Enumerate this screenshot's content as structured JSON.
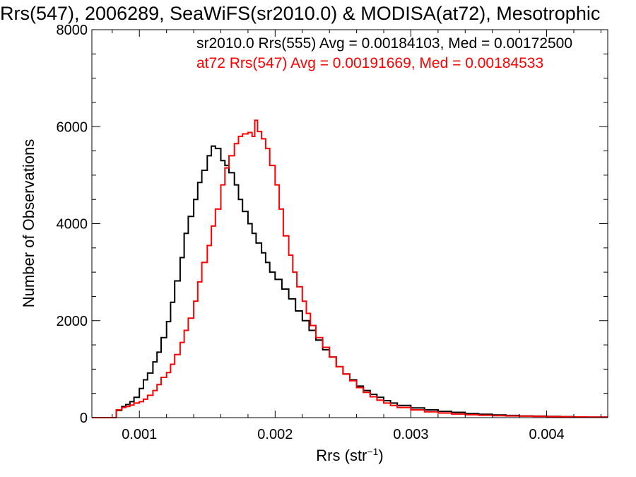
{
  "chart_data": {
    "type": "line",
    "title": "Rrs(547), 2006289, SeaWiFS(sr2010.0) & MODISA(at72), Mesotrophic",
    "xlabel": {
      "main": "Rrs (str",
      "sup": "−1",
      "close": ")"
    },
    "ylabel": "Number of Observations",
    "xlim": [
      0.00065,
      0.00445
    ],
    "ylim": [
      0,
      8000
    ],
    "x_ticks": [
      {
        "value": 0.001,
        "label": "0.001"
      },
      {
        "value": 0.002,
        "label": "0.002"
      },
      {
        "value": 0.003,
        "label": "0.003"
      },
      {
        "value": 0.004,
        "label": "0.004"
      }
    ],
    "y_ticks": [
      {
        "value": 0,
        "label": "0"
      },
      {
        "value": 2000,
        "label": "2000"
      },
      {
        "value": 4000,
        "label": "4000"
      },
      {
        "value": 6000,
        "label": "6000"
      },
      {
        "value": 8000,
        "label": "8000"
      }
    ],
    "grid": false,
    "legend_position": "top-right",
    "series": [
      {
        "name": "sr2010.0 Rrs(555) Avg = 0.00184103, Med = 0.00172500",
        "color": "#000000",
        "step": "post",
        "points": [
          [
            0.00065,
            0
          ],
          [
            0.0008,
            0
          ],
          [
            0.00083,
            150
          ],
          [
            0.00087,
            230
          ],
          [
            0.0009,
            270
          ],
          [
            0.00093,
            330
          ],
          [
            0.00096,
            420
          ],
          [
            0.001,
            600
          ],
          [
            0.00103,
            780
          ],
          [
            0.00106,
            920
          ],
          [
            0.0011,
            1150
          ],
          [
            0.00113,
            1350
          ],
          [
            0.00116,
            1650
          ],
          [
            0.0012,
            1980
          ],
          [
            0.00123,
            2380
          ],
          [
            0.00126,
            2820
          ],
          [
            0.0013,
            3300
          ],
          [
            0.00133,
            3800
          ],
          [
            0.00136,
            4150
          ],
          [
            0.0014,
            4500
          ],
          [
            0.00143,
            4850
          ],
          [
            0.00146,
            5100
          ],
          [
            0.0015,
            5400
          ],
          [
            0.00153,
            5600
          ],
          [
            0.00156,
            5550
          ],
          [
            0.0016,
            5300
          ],
          [
            0.00163,
            5200
          ],
          [
            0.00166,
            5050
          ],
          [
            0.0017,
            4800
          ],
          [
            0.00173,
            4500
          ],
          [
            0.00176,
            4250
          ],
          [
            0.0018,
            4000
          ],
          [
            0.00183,
            3800
          ],
          [
            0.00186,
            3600
          ],
          [
            0.0019,
            3400
          ],
          [
            0.00193,
            3200
          ],
          [
            0.00196,
            3000
          ],
          [
            0.002,
            2850
          ],
          [
            0.00205,
            2650
          ],
          [
            0.0021,
            2450
          ],
          [
            0.00215,
            2200
          ],
          [
            0.0022,
            2000
          ],
          [
            0.00225,
            1800
          ],
          [
            0.0023,
            1600
          ],
          [
            0.00235,
            1400
          ],
          [
            0.0024,
            1250
          ],
          [
            0.00245,
            1050
          ],
          [
            0.0025,
            900
          ],
          [
            0.00255,
            780
          ],
          [
            0.0026,
            650
          ],
          [
            0.00265,
            560
          ],
          [
            0.0027,
            480
          ],
          [
            0.00275,
            420
          ],
          [
            0.0028,
            350
          ],
          [
            0.00285,
            300
          ],
          [
            0.0029,
            250
          ],
          [
            0.003,
            200
          ],
          [
            0.0031,
            160
          ],
          [
            0.0032,
            130
          ],
          [
            0.0033,
            110
          ],
          [
            0.0034,
            85
          ],
          [
            0.0035,
            70
          ],
          [
            0.0036,
            55
          ],
          [
            0.0037,
            45
          ],
          [
            0.0038,
            35
          ],
          [
            0.0039,
            30
          ],
          [
            0.004,
            25
          ],
          [
            0.0041,
            20
          ],
          [
            0.0042,
            15
          ],
          [
            0.0043,
            12
          ],
          [
            0.0044,
            10
          ],
          [
            0.00445,
            10
          ]
        ]
      },
      {
        "name": "at72 Rrs(547) Avg = 0.00191669, Med = 0.00184533",
        "color": "#ff0000",
        "step": "post",
        "points": [
          [
            0.00065,
            0
          ],
          [
            0.0008,
            0
          ],
          [
            0.00083,
            160
          ],
          [
            0.00087,
            210
          ],
          [
            0.0009,
            230
          ],
          [
            0.00093,
            260
          ],
          [
            0.00096,
            300
          ],
          [
            0.001,
            330
          ],
          [
            0.00103,
            380
          ],
          [
            0.00106,
            460
          ],
          [
            0.0011,
            560
          ],
          [
            0.00113,
            680
          ],
          [
            0.00116,
            830
          ],
          [
            0.0012,
            930
          ],
          [
            0.00123,
            1100
          ],
          [
            0.00126,
            1300
          ],
          [
            0.0013,
            1550
          ],
          [
            0.00133,
            1800
          ],
          [
            0.00136,
            2050
          ],
          [
            0.0014,
            2400
          ],
          [
            0.00143,
            2800
          ],
          [
            0.00146,
            3200
          ],
          [
            0.0015,
            3550
          ],
          [
            0.00153,
            3950
          ],
          [
            0.00156,
            4300
          ],
          [
            0.0016,
            4800
          ],
          [
            0.00163,
            5150
          ],
          [
            0.00166,
            5400
          ],
          [
            0.0017,
            5650
          ],
          [
            0.00173,
            5800
          ],
          [
            0.00176,
            5850
          ],
          [
            0.0018,
            5880
          ],
          [
            0.00183,
            5800
          ],
          [
            0.00185,
            6130
          ],
          [
            0.00187,
            5900
          ],
          [
            0.0019,
            5750
          ],
          [
            0.00193,
            5550
          ],
          [
            0.00196,
            5200
          ],
          [
            0.002,
            4800
          ],
          [
            0.00203,
            4300
          ],
          [
            0.00206,
            3750
          ],
          [
            0.0021,
            3350
          ],
          [
            0.00213,
            3000
          ],
          [
            0.00216,
            2700
          ],
          [
            0.0022,
            2400
          ],
          [
            0.00223,
            2150
          ],
          [
            0.00226,
            1900
          ],
          [
            0.0023,
            1650
          ],
          [
            0.00235,
            1450
          ],
          [
            0.0024,
            1250
          ],
          [
            0.00245,
            1050
          ],
          [
            0.0025,
            900
          ],
          [
            0.00255,
            760
          ],
          [
            0.0026,
            620
          ],
          [
            0.00265,
            520
          ],
          [
            0.0027,
            430
          ],
          [
            0.00275,
            360
          ],
          [
            0.0028,
            300
          ],
          [
            0.00285,
            250
          ],
          [
            0.0029,
            210
          ],
          [
            0.003,
            160
          ],
          [
            0.0031,
            120
          ],
          [
            0.0032,
            95
          ],
          [
            0.0033,
            75
          ],
          [
            0.0034,
            60
          ],
          [
            0.0035,
            50
          ],
          [
            0.0036,
            40
          ],
          [
            0.0037,
            35
          ],
          [
            0.0038,
            30
          ],
          [
            0.0039,
            25
          ],
          [
            0.004,
            20
          ],
          [
            0.0041,
            18
          ],
          [
            0.0042,
            15
          ],
          [
            0.0043,
            12
          ],
          [
            0.0044,
            10
          ],
          [
            0.00445,
            10
          ]
        ]
      }
    ]
  }
}
